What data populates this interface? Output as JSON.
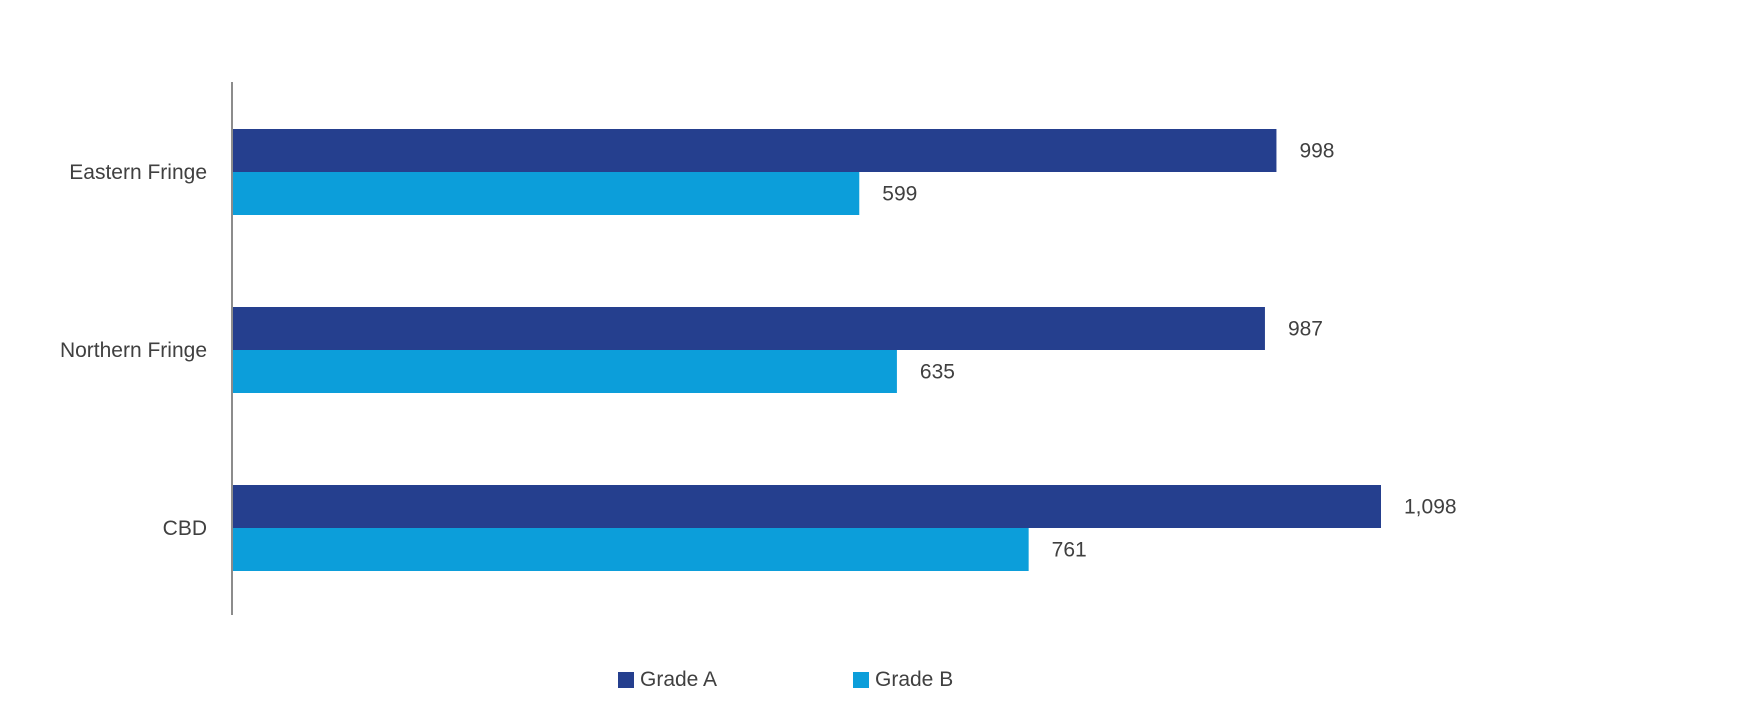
{
  "chart_data": {
    "type": "bar",
    "orientation": "horizontal",
    "categories": [
      "Eastern Fringe",
      "Northern Fringe",
      "CBD"
    ],
    "series": [
      {
        "name": "Grade A",
        "color": "#253F8E",
        "values": [
          998,
          987,
          1098
        ],
        "labels": [
          "998",
          "987",
          "1,098"
        ]
      },
      {
        "name": "Grade B",
        "color": "#0C9EDA",
        "values": [
          599,
          635,
          761
        ],
        "labels": [
          "599",
          "635",
          "761"
        ]
      }
    ],
    "xlim": [
      0,
      1300
    ],
    "grid": false,
    "legend_position": "bottom"
  }
}
